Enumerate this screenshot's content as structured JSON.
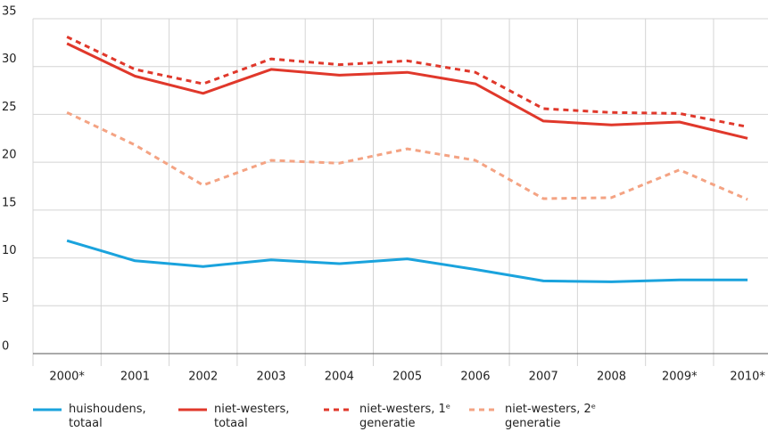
{
  "chart_data": {
    "type": "line",
    "categories": [
      "2000*",
      "2001",
      "2002",
      "2003",
      "2004",
      "2005",
      "2006",
      "2007",
      "2008",
      "2009*",
      "2010*"
    ],
    "series": [
      {
        "name": "huishoudens, totaal",
        "color": "#1aa3dd",
        "dashed": false,
        "values": [
          11.8,
          9.7,
          9.1,
          9.8,
          9.4,
          9.9,
          8.8,
          7.6,
          7.5,
          7.7,
          7.7
        ]
      },
      {
        "name": "niet-westers, totaal",
        "color": "#e0382b",
        "dashed": false,
        "values": [
          32.4,
          29.0,
          27.2,
          29.7,
          29.1,
          29.4,
          28.2,
          24.3,
          23.9,
          24.2,
          22.5
        ]
      },
      {
        "name": "niet-westers, 1ᵉ generatie",
        "color": "#e0382b",
        "dashed": true,
        "values": [
          33.1,
          29.7,
          28.2,
          30.8,
          30.2,
          30.6,
          29.4,
          25.6,
          25.2,
          25.1,
          23.7
        ]
      },
      {
        "name": "niet-westers, 2ᵉ generatie",
        "color": "#f4a383",
        "dashed": true,
        "values": [
          25.2,
          21.8,
          17.6,
          20.2,
          19.9,
          21.4,
          20.2,
          16.2,
          16.3,
          19.2,
          16.1
        ]
      }
    ],
    "ylim": [
      0,
      35
    ],
    "yticks": [
      0,
      5,
      10,
      15,
      20,
      25,
      30,
      35
    ],
    "grid": true
  }
}
